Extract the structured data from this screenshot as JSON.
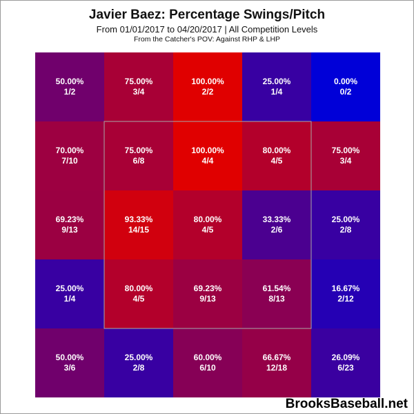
{
  "chart_data": {
    "type": "heatmap",
    "title": "Javier Baez: Percentage Swings/Pitch",
    "subtitle": "From 01/01/2017 to 04/20/2017 | All Competition Levels",
    "subtitle2": "From the Catcher's POV:  Against RHP & LHP",
    "rows": 5,
    "cols": 5,
    "strike_zone": {
      "rows": [
        1,
        3
      ],
      "cols": [
        1,
        3
      ]
    },
    "cells": [
      [
        {
          "pct": "50.00%",
          "frac": "1/2",
          "value": 50.0
        },
        {
          "pct": "75.00%",
          "frac": "3/4",
          "value": 75.0
        },
        {
          "pct": "100.00%",
          "frac": "2/2",
          "value": 100.0
        },
        {
          "pct": "25.00%",
          "frac": "1/4",
          "value": 25.0
        },
        {
          "pct": "0.00%",
          "frac": "0/2",
          "value": 0.0
        }
      ],
      [
        {
          "pct": "70.00%",
          "frac": "7/10",
          "value": 70.0
        },
        {
          "pct": "75.00%",
          "frac": "6/8",
          "value": 75.0
        },
        {
          "pct": "100.00%",
          "frac": "4/4",
          "value": 100.0
        },
        {
          "pct": "80.00%",
          "frac": "4/5",
          "value": 80.0
        },
        {
          "pct": "75.00%",
          "frac": "3/4",
          "value": 75.0
        }
      ],
      [
        {
          "pct": "69.23%",
          "frac": "9/13",
          "value": 69.23
        },
        {
          "pct": "93.33%",
          "frac": "14/15",
          "value": 93.33
        },
        {
          "pct": "80.00%",
          "frac": "4/5",
          "value": 80.0
        },
        {
          "pct": "33.33%",
          "frac": "2/6",
          "value": 33.33
        },
        {
          "pct": "25.00%",
          "frac": "2/8",
          "value": 25.0
        }
      ],
      [
        {
          "pct": "25.00%",
          "frac": "1/4",
          "value": 25.0
        },
        {
          "pct": "80.00%",
          "frac": "4/5",
          "value": 80.0
        },
        {
          "pct": "69.23%",
          "frac": "9/13",
          "value": 69.23
        },
        {
          "pct": "61.54%",
          "frac": "8/13",
          "value": 61.54
        },
        {
          "pct": "16.67%",
          "frac": "2/12",
          "value": 16.67
        }
      ],
      [
        {
          "pct": "50.00%",
          "frac": "3/6",
          "value": 50.0
        },
        {
          "pct": "25.00%",
          "frac": "2/8",
          "value": 25.0
        },
        {
          "pct": "60.00%",
          "frac": "6/10",
          "value": 60.0
        },
        {
          "pct": "66.67%",
          "frac": "12/18",
          "value": 66.67
        },
        {
          "pct": "26.09%",
          "frac": "6/23",
          "value": 26.09
        }
      ]
    ],
    "colors": {
      "low": "#0000d8",
      "high": "#e00000",
      "strike_zone_border": "#a8a8a8"
    }
  },
  "watermark": "BrooksBaseball.net"
}
